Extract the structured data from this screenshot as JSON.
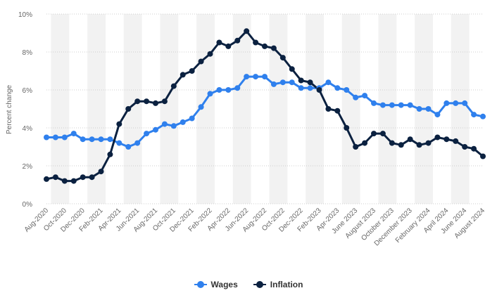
{
  "chart_data": {
    "type": "line",
    "title": "",
    "xlabel": "",
    "ylabel": "Percent change",
    "ylim": [
      0,
      10
    ],
    "yticks": [
      "0%",
      "2%",
      "4%",
      "6%",
      "8%",
      "10%"
    ],
    "grid": "horizontal dotted lines, alternating vertical bands",
    "legend_position": "bottom-center",
    "x": [
      "Aug-2020",
      "Sep-2020",
      "Oct-2020",
      "Nov-2020",
      "Dec-2020",
      "Jan-2021",
      "Feb-2021",
      "Mar-2021",
      "Apr-2021",
      "May-2021",
      "Jun-2021",
      "Jul-2021",
      "Aug-2021",
      "Sep-2021",
      "Oct-2021",
      "Nov-2021",
      "Dec-2021",
      "Jan-2022",
      "Feb-2022",
      "Mar-2022",
      "Apr-2022",
      "May-2022",
      "Jun-2022",
      "Jul-2022",
      "Aug-2022",
      "Sep-2022",
      "Oct-2022",
      "Nov-2022",
      "Dec-2022",
      "Jan-2023",
      "Feb-2023",
      "Mar-2023",
      "Apr-2023",
      "May-2023",
      "June 2023",
      "July 2023",
      "August 2023",
      "September 2023",
      "October 2023",
      "November 2023",
      "December 2023",
      "January 2024",
      "February 2024",
      "March 2024",
      "April 2024",
      "May 2024",
      "June 2024",
      "July 2024",
      "August 2024"
    ],
    "x_tick_labels": [
      "Aug-2020",
      "Oct-2020",
      "Dec-2020",
      "Feb-2021",
      "Apr-2021",
      "Jun-2021",
      "Aug-2021",
      "Oct-2021",
      "Dec-2021",
      "Feb-2022",
      "Apr-2022",
      "Jun-2022",
      "Aug-2022",
      "Oct-2022",
      "Dec-2022",
      "Feb-2023",
      "Apr-2023",
      "June 2023",
      "August 2023",
      "October 2023",
      "December 2023",
      "February 2024",
      "April 2024",
      "June 2024",
      "August 2024"
    ],
    "series": [
      {
        "name": "Wages",
        "color": "#2f80ed",
        "values": [
          3.5,
          3.5,
          3.5,
          3.7,
          3.4,
          3.4,
          3.4,
          3.4,
          3.2,
          3.0,
          3.2,
          3.7,
          3.9,
          4.2,
          4.1,
          4.3,
          4.5,
          5.1,
          5.8,
          6.0,
          6.0,
          6.1,
          6.7,
          6.7,
          6.7,
          6.3,
          6.4,
          6.4,
          6.1,
          6.1,
          6.1,
          6.4,
          6.1,
          6.0,
          5.6,
          5.7,
          5.3,
          5.2,
          5.2,
          5.2,
          5.2,
          5.0,
          5.0,
          4.7,
          5.3,
          5.3,
          5.3,
          4.7,
          4.6
        ]
      },
      {
        "name": "Inflation",
        "color": "#0b2140",
        "values": [
          1.3,
          1.4,
          1.2,
          1.2,
          1.4,
          1.4,
          1.7,
          2.6,
          4.2,
          5.0,
          5.4,
          5.4,
          5.3,
          5.4,
          6.2,
          6.8,
          7.0,
          7.5,
          7.9,
          8.5,
          8.3,
          8.6,
          9.1,
          8.5,
          8.3,
          8.2,
          7.7,
          7.1,
          6.5,
          6.4,
          6.0,
          5.0,
          4.9,
          4.0,
          3.0,
          3.2,
          3.7,
          3.7,
          3.2,
          3.1,
          3.4,
          3.1,
          3.2,
          3.5,
          3.4,
          3.3,
          3.0,
          2.9,
          2.5
        ]
      }
    ]
  }
}
